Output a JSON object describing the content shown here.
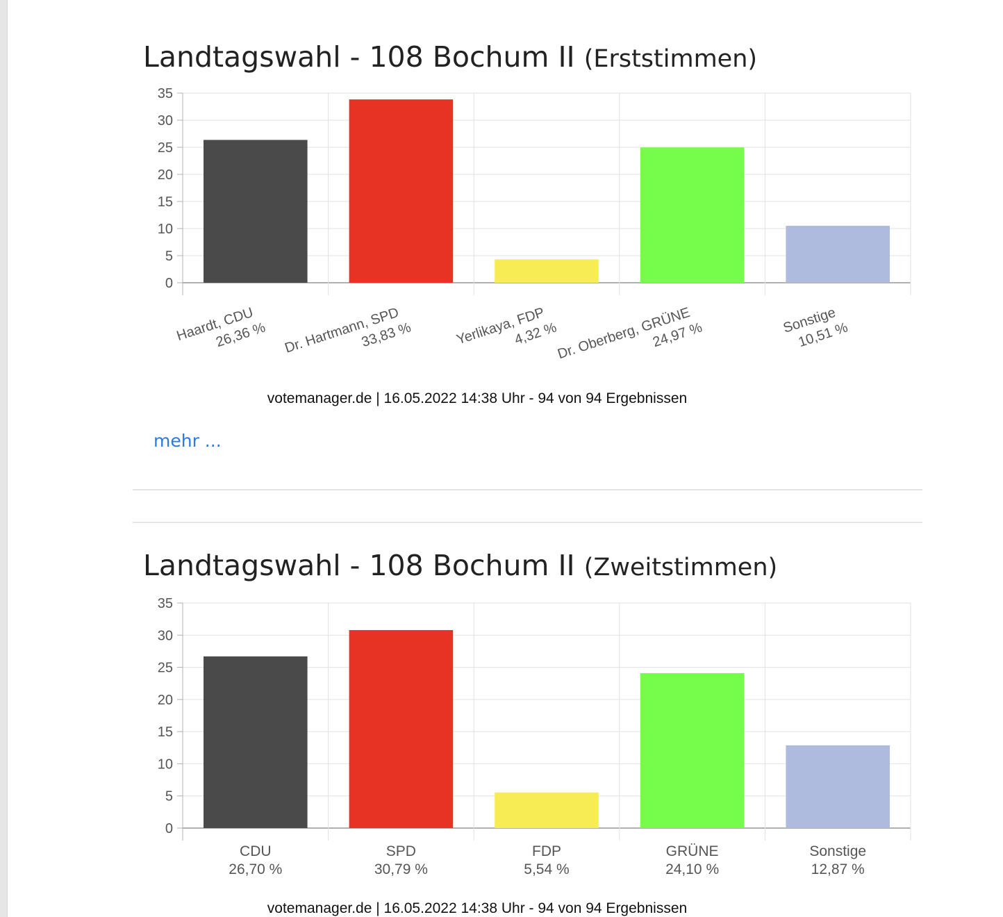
{
  "charts": [
    {
      "title": "Landtagswahl - 108 Bochum II",
      "subtitle": "(Erststimmen)",
      "source": "votemanager.de | 16.05.2022 14:38 Uhr - 94 von 94 Ergebnissen",
      "more_link": "mehr ...",
      "label_style": "rotated"
    },
    {
      "title": "Landtagswahl - 108 Bochum II",
      "subtitle": "(Zweitstimmen)",
      "source": "votemanager.de | 16.05.2022 14:38 Uhr - 94 von 94 Ergebnissen",
      "label_style": "horizontal"
    }
  ],
  "chart_data": [
    {
      "type": "bar",
      "title": "Landtagswahl - 108 Bochum II (Erststimmen)",
      "categories": [
        "Haardt, CDU",
        "Dr. Hartmann, SPD",
        "Yerlikaya, FDP",
        "Dr. Oberberg, GRÜNE",
        "Sonstige"
      ],
      "values": [
        26.36,
        33.83,
        4.32,
        24.97,
        10.51
      ],
      "value_labels": [
        "26,36 %",
        "33,83 %",
        "4,32 %",
        "24,97 %",
        "10,51 %"
      ],
      "colors": [
        "#4a4a4a",
        "#e63323",
        "#f7ec54",
        "#76fc4b",
        "#aebbdf"
      ],
      "ylim": [
        0,
        35
      ],
      "yticks": [
        0,
        5,
        10,
        15,
        20,
        25,
        30,
        35
      ],
      "grid": true
    },
    {
      "type": "bar",
      "title": "Landtagswahl - 108 Bochum II (Zweitstimmen)",
      "categories": [
        "CDU",
        "SPD",
        "FDP",
        "GRÜNE",
        "Sonstige"
      ],
      "values": [
        26.7,
        30.79,
        5.54,
        24.1,
        12.87
      ],
      "value_labels": [
        "26,70 %",
        "30,79 %",
        "5,54 %",
        "24,10 %",
        "12,87 %"
      ],
      "colors": [
        "#4a4a4a",
        "#e63323",
        "#f7ec54",
        "#76fc4b",
        "#aebbdf"
      ],
      "ylim": [
        0,
        35
      ],
      "yticks": [
        0,
        5,
        10,
        15,
        20,
        25,
        30,
        35
      ],
      "grid": true
    }
  ]
}
